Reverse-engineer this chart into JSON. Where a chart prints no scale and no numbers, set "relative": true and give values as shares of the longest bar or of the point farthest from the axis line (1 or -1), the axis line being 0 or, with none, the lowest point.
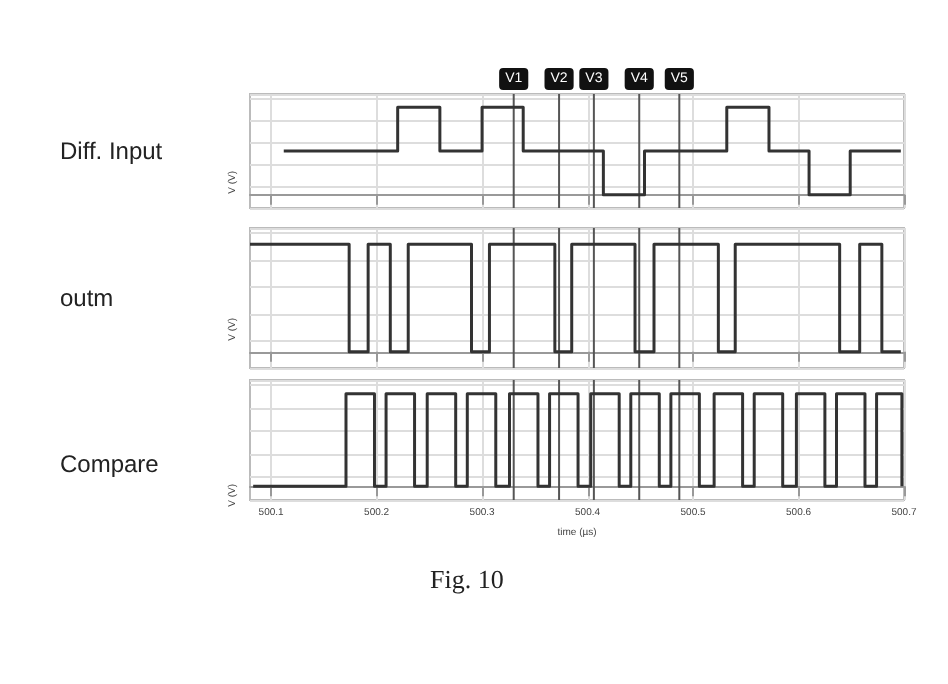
{
  "chart_data": [
    {
      "type": "step",
      "title": "Diff. Input",
      "ylabel": "V (V)",
      "relative": true,
      "xlim": [
        500.08,
        500.7
      ],
      "xticks": [
        500.1,
        500.2,
        500.3,
        500.4,
        500.5,
        500.6,
        500.7
      ],
      "tick_labels": false,
      "grid": true,
      "marker": "none",
      "x": [
        500.112,
        500.22,
        500.26,
        500.3,
        500.339,
        500.415,
        500.454,
        500.532,
        500.572,
        500.61,
        500.649,
        500.697
      ],
      "series": [
        {
          "color": "#333333",
          "values": [
            0.5,
            1,
            0.5,
            1,
            0.5,
            0,
            0.5,
            1,
            0.5,
            0,
            0.5,
            0.5
          ]
        }
      ],
      "ref_lines": [
        {
          "axis": "x",
          "value": 500.33,
          "label": "V1"
        },
        {
          "axis": "x",
          "value": 500.373,
          "label": "V2"
        },
        {
          "axis": "x",
          "value": 500.406,
          "label": "V3"
        },
        {
          "axis": "x",
          "value": 500.449,
          "label": "V4"
        },
        {
          "axis": "x",
          "value": 500.487,
          "label": "V5"
        }
      ]
    },
    {
      "type": "step",
      "title": "outm",
      "ylabel": "V (V)",
      "relative": true,
      "xlim": [
        500.08,
        500.7
      ],
      "xticks": [
        500.1,
        500.2,
        500.3,
        500.4,
        500.5,
        500.6,
        500.7
      ],
      "tick_labels": false,
      "grid": true,
      "marker": "none",
      "x": [
        500.08,
        500.174,
        500.192,
        500.213,
        500.23,
        500.29,
        500.307,
        500.369,
        500.385,
        500.445,
        500.463,
        500.524,
        500.54,
        500.639,
        500.658,
        500.679,
        500.697
      ],
      "series": [
        {
          "color": "#333333",
          "values": [
            1,
            0,
            1,
            0,
            1,
            0,
            1,
            0,
            1,
            0,
            1,
            0,
            1,
            0,
            1,
            0,
            0
          ]
        }
      ],
      "ref_lines": [
        {
          "axis": "x",
          "value": 500.33
        },
        {
          "axis": "x",
          "value": 500.373
        },
        {
          "axis": "x",
          "value": 500.406
        },
        {
          "axis": "x",
          "value": 500.449
        },
        {
          "axis": "x",
          "value": 500.487
        }
      ]
    },
    {
      "type": "step",
      "title": "Compare",
      "ylabel": "V (V)",
      "xlabel": "time (µs)",
      "relative": true,
      "xlim": [
        500.08,
        500.7
      ],
      "xticks": [
        500.1,
        500.2,
        500.3,
        500.4,
        500.5,
        500.6,
        500.7
      ],
      "tick_labels": "x",
      "grid": true,
      "marker": "none",
      "x": [
        500.083,
        500.171,
        500.198,
        500.209,
        500.236,
        500.248,
        500.275,
        500.286,
        500.313,
        500.326,
        500.353,
        500.364,
        500.391,
        500.403,
        500.43,
        500.441,
        500.468,
        500.479,
        500.506,
        500.52,
        500.547,
        500.558,
        500.585,
        500.598,
        500.625,
        500.636,
        500.663,
        500.674,
        500.698
      ],
      "series": [
        {
          "color": "#333333",
          "values": [
            0,
            1,
            0,
            1,
            0,
            1,
            0,
            1,
            0,
            1,
            0,
            1,
            0,
            1,
            0,
            1,
            0,
            1,
            0,
            1,
            0,
            1,
            0,
            1,
            0,
            1,
            0,
            1,
            0
          ]
        }
      ],
      "ref_lines": [
        {
          "axis": "x",
          "value": 500.33
        },
        {
          "axis": "x",
          "value": 500.373
        },
        {
          "axis": "x",
          "value": 500.406
        },
        {
          "axis": "x",
          "value": 500.449
        },
        {
          "axis": "x",
          "value": 500.487
        }
      ],
      "annotations": [
        "Fig. 10"
      ]
    }
  ]
}
